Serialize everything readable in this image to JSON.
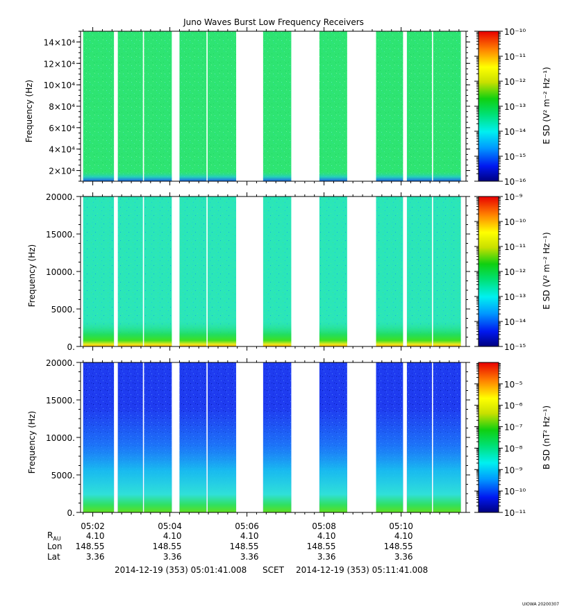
{
  "chart_data": [
    {
      "type": "heatmap",
      "title": "Juno Waves Burst Low Frequency Receivers",
      "ylabel": "Frequency (Hz)",
      "y_ticks": [
        "2×10⁴",
        "4×10⁴",
        "6×10⁴",
        "8×10⁴",
        "10×10⁴",
        "12×10⁴",
        "14×10⁴"
      ],
      "y_tick_values": [
        20000,
        40000,
        60000,
        80000,
        100000,
        120000,
        140000
      ],
      "ylim": [
        10000,
        150000
      ],
      "colorbar_label": "E SD (V² m⁻² Hz⁻¹)",
      "colorbar_ticks": [
        "10⁻¹⁶",
        "10⁻¹⁵",
        "10⁻¹⁴",
        "10⁻¹³",
        "10⁻¹²",
        "10⁻¹¹",
        "10⁻¹⁰"
      ],
      "colorbar_range": [
        1e-16,
        1e-10
      ],
      "dominant_level": "1e-13"
    },
    {
      "type": "heatmap",
      "ylabel": "Frequency (Hz)",
      "y_ticks": [
        "0.",
        "5000.",
        "10000.",
        "15000.",
        "20000."
      ],
      "y_tick_values": [
        0,
        5000,
        10000,
        15000,
        20000
      ],
      "ylim": [
        0,
        20000
      ],
      "colorbar_label": "E SD (V² m⁻² Hz⁻¹)",
      "colorbar_ticks": [
        "10⁻¹⁵",
        "10⁻¹⁴",
        "10⁻¹³",
        "10⁻¹²",
        "10⁻¹¹",
        "10⁻¹⁰",
        "10⁻⁹"
      ],
      "colorbar_range": [
        1e-15,
        1e-09
      ],
      "dominant_level": "1e-13"
    },
    {
      "type": "heatmap",
      "ylabel": "Frequency (Hz)",
      "y_ticks": [
        "0.",
        "5000.",
        "10000.",
        "15000.",
        "20000."
      ],
      "y_tick_values": [
        0,
        5000,
        10000,
        15000,
        20000
      ],
      "ylim": [
        0,
        20000
      ],
      "colorbar_label": "B SD (nT² Hz⁻¹)",
      "colorbar_ticks": [
        "10⁻¹¹",
        "10⁻¹⁰",
        "10⁻⁹",
        "10⁻⁸",
        "10⁻⁷",
        "10⁻⁶",
        "10⁻⁵"
      ],
      "colorbar_range": [
        1e-11,
        0.0001
      ],
      "dominant_level": "1e-10"
    }
  ],
  "x_axis": {
    "tick_labels": [
      "05:02",
      "05:04",
      "05:06",
      "05:08",
      "05:10"
    ],
    "tick_minutes": [
      2,
      4,
      6,
      8,
      10
    ],
    "range_minutes": [
      1.6833,
      11.6833
    ]
  },
  "data_segments_minutes": [
    [
      1.75,
      2.55
    ],
    [
      2.65,
      3.3
    ],
    [
      3.33,
      4.05
    ],
    [
      4.25,
      4.95
    ],
    [
      4.98,
      5.72
    ],
    [
      6.42,
      7.15
    ],
    [
      7.88,
      8.6
    ],
    [
      9.35,
      10.05
    ],
    [
      10.15,
      10.8
    ],
    [
      10.83,
      11.55
    ]
  ],
  "ephemeris": {
    "row_labels": [
      "R",
      "Lon",
      "Lat"
    ],
    "r_subscript": "AU",
    "r_values": [
      "4.10",
      "4.10",
      "4.10",
      "4.10",
      "4.10"
    ],
    "lon_values": [
      "148.55",
      "148.55",
      "148.55",
      "148.55",
      "148.55"
    ],
    "lat_values": [
      "3.36",
      "3.36",
      "3.36",
      "3.36",
      "3.36"
    ]
  },
  "footer": {
    "start": "2014-12-19 (353) 05:01:41.008",
    "scet": "SCET",
    "end": "2014-12-19 (353) 05:11:41.008"
  },
  "watermark": "UIOWA 20200307",
  "colors": {
    "panel1": "#2ee472",
    "panel2": "#2be6b8",
    "panel3": "#1f3cf0"
  }
}
